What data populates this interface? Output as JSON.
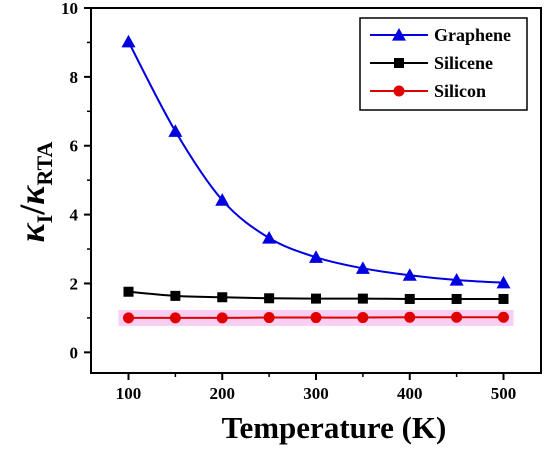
{
  "chart_data": {
    "type": "line",
    "xlabel": "Temperature (K)",
    "ylabel": {
      "main": "κ",
      "sub1": "I",
      "slash": "/",
      "main2": "κ",
      "sub2": "RTA"
    },
    "xlim": [
      60,
      540
    ],
    "ylim": [
      -0.6,
      10
    ],
    "xticks": [
      100,
      200,
      300,
      400,
      500
    ],
    "yticks": [
      0,
      2,
      4,
      6,
      8,
      10
    ],
    "x": [
      100,
      150,
      200,
      250,
      300,
      350,
      400,
      450,
      500
    ],
    "series": [
      {
        "name": "Graphene",
        "color": "#0000e0",
        "marker": "triangle",
        "values": [
          9.02,
          6.42,
          4.42,
          3.32,
          2.76,
          2.44,
          2.24,
          2.1,
          2.02
        ]
      },
      {
        "name": "Silicene",
        "color": "#000000",
        "marker": "square",
        "values": [
          1.76,
          1.64,
          1.6,
          1.57,
          1.56,
          1.56,
          1.55,
          1.55,
          1.55
        ]
      },
      {
        "name": "Silicon",
        "color": "#e00000",
        "marker": "circle",
        "values": [
          1.0,
          1.0,
          1.0,
          1.01,
          1.01,
          1.01,
          1.02,
          1.02,
          1.02
        ]
      }
    ],
    "highlight_color": "#f7c6f0",
    "legend": {
      "position": "top-right"
    },
    "grid": false
  }
}
